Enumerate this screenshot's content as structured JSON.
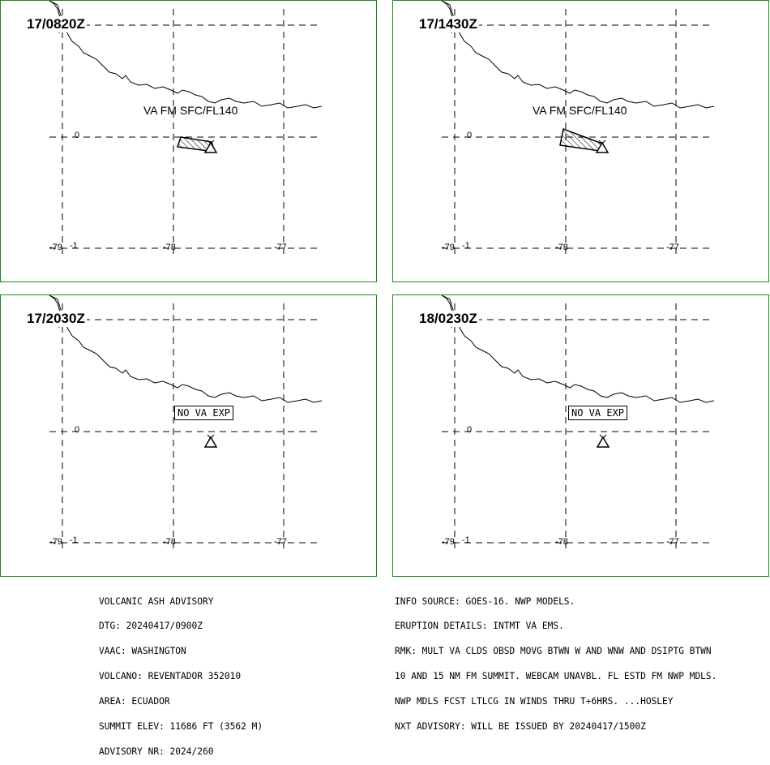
{
  "panels": [
    {
      "time": "17/0820Z",
      "ash": "plume",
      "label": "VA FM SFC/FL140"
    },
    {
      "time": "17/1430Z",
      "ash": "plume-large",
      "label": "VA FM SFC/FL140"
    },
    {
      "time": "17/2030Z",
      "ash": "none",
      "label": "NO VA EXP"
    },
    {
      "time": "18/0230Z",
      "ash": "none",
      "label": "NO VA EXP"
    }
  ],
  "axes": {
    "lat_label": "0",
    "lon_labels": [
      "-79",
      "-1",
      "-78",
      "-77"
    ]
  },
  "colors": {
    "panel_border": "#1a8a1a",
    "lines": "#000000",
    "background": "#ffffff"
  },
  "icons": {
    "volcano": "volcano-triangle-icon",
    "ash_area": "hatched-polygon"
  },
  "advisory_left": [
    "VOLCANIC ASH ADVISORY",
    "DTG: 20240417/0900Z",
    "VAAC: WASHINGTON",
    "VOLCANO: REVENTADOR 352010",
    "AREA: ECUADOR",
    "SUMMIT ELEV: 11686 FT (3562 M)",
    "ADVISORY NR: 2024/260"
  ],
  "advisory_right": [
    "INFO SOURCE: GOES-16. NWP MODELS.",
    "ERUPTION DETAILS: INTMT VA EMS.",
    "RMK: MULT VA CLDS OBSD MOVG BTWN W AND WNW AND DSIPTG BTWN",
    "10 AND 15 NM FM SUMMIT. WEBCAM UNAVBL. FL ESTD FM NWP MDLS.",
    "NWP MDLS FCST LTLCG IN WINDS THRU T+6HRS. ...HOSLEY",
    "NXT ADVISORY: WILL BE ISSUED BY 20240417/1500Z"
  ]
}
